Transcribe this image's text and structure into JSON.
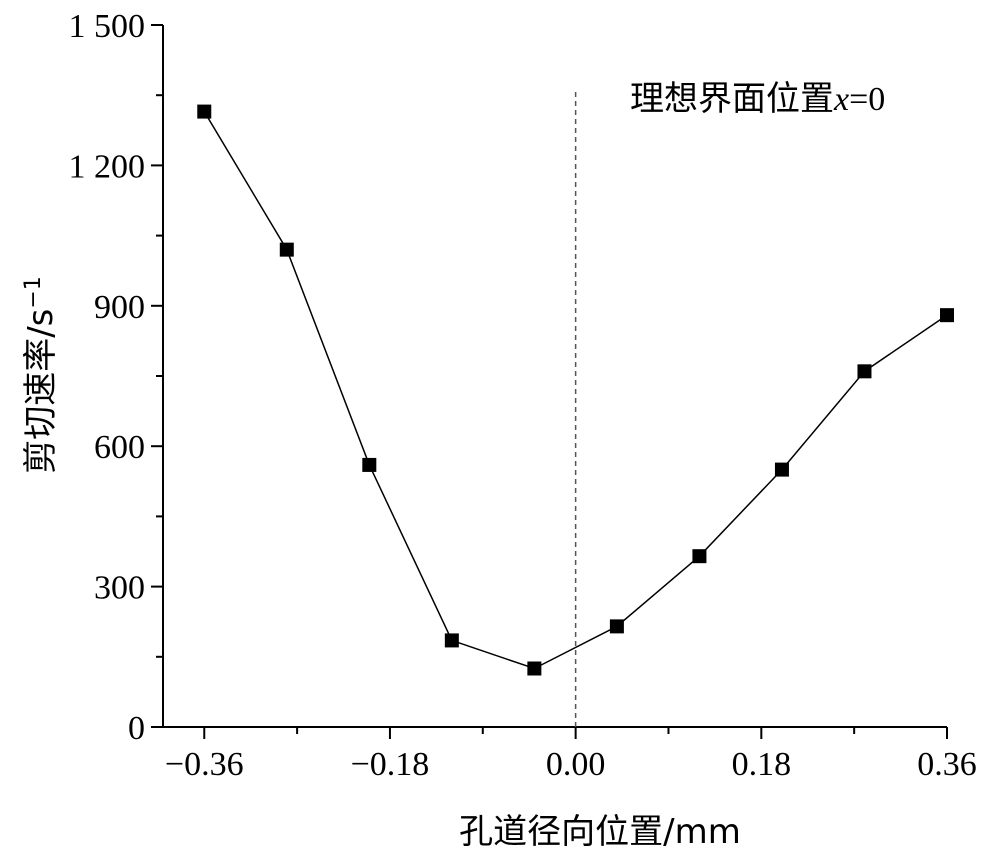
{
  "chart_data": {
    "type": "line",
    "title": "",
    "xlabel": "孔道径向位置/mm",
    "ylabel_main": "剪切速率/s",
    "ylabel_sup": "−1",
    "xlim": [
      -0.4,
      0.36
    ],
    "ylim": [
      0,
      1500
    ],
    "x_ticks": [
      -0.36,
      -0.18,
      0.0,
      0.18,
      0.36
    ],
    "x_tick_labels": [
      "−0.36",
      "−0.18",
      "0.00",
      "0.18",
      "0.36"
    ],
    "x_minor_ticks": [
      -0.27,
      -0.09,
      0.09,
      0.27
    ],
    "y_ticks": [
      0,
      300,
      600,
      900,
      1200,
      1500
    ],
    "y_tick_labels": [
      "0",
      "300",
      "600",
      "900",
      "1 200",
      "1 500"
    ],
    "y_minor_ticks": [
      150,
      450,
      750,
      1050,
      1350
    ],
    "grid": false,
    "marker": "square",
    "series": [
      {
        "x": [
          -0.36,
          -0.28,
          -0.2,
          -0.12,
          -0.04,
          0.04,
          0.12,
          0.2,
          0.28,
          0.36
        ],
        "y": [
          1315,
          1020,
          560,
          185,
          125,
          215,
          365,
          550,
          760,
          880
        ]
      }
    ],
    "reference_line": {
      "x": 0.0,
      "style": "dashed"
    },
    "annotation": {
      "text": "理想界面位置",
      "var": "x",
      "rest": "=0"
    }
  }
}
